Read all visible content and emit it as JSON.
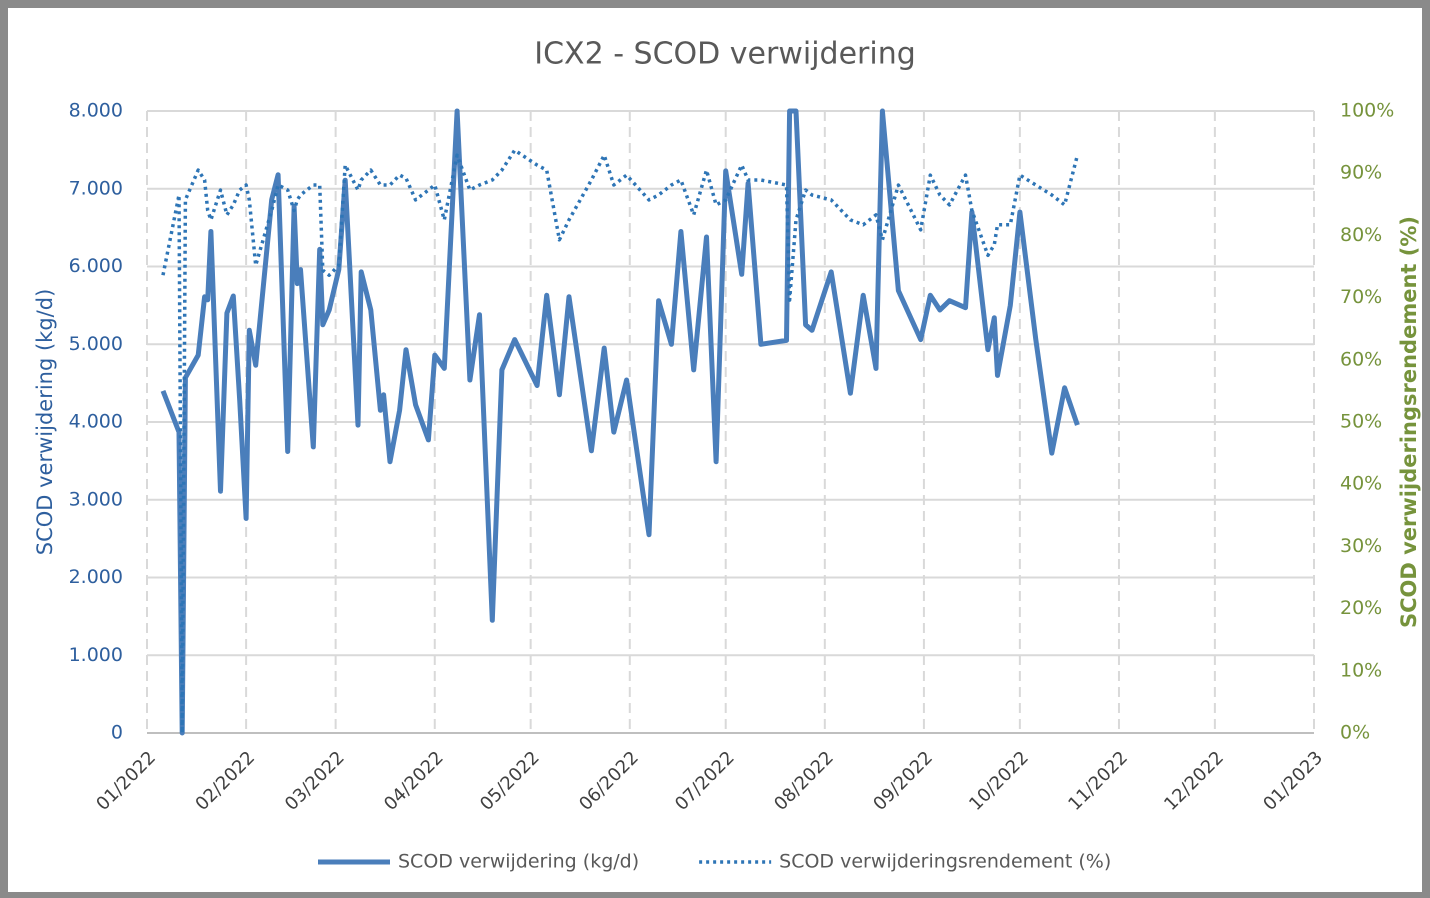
{
  "chart_data": {
    "type": "line",
    "title": "ICX2 - SCOD verwijdering",
    "y_label": "SCOD verwijdering (kg/d)",
    "y2_label": "SCOD verwijderingsrendement (%)",
    "xlim": [
      0,
      365
    ],
    "xticks": [
      {
        "value": 0,
        "label": "01/2022"
      },
      {
        "value": 31,
        "label": "02/2022"
      },
      {
        "value": 59,
        "label": "03/2022"
      },
      {
        "value": 90,
        "label": "04/2022"
      },
      {
        "value": 120,
        "label": "05/2022"
      },
      {
        "value": 151,
        "label": "06/2022"
      },
      {
        "value": 181,
        "label": "07/2022"
      },
      {
        "value": 212,
        "label": "08/2022"
      },
      {
        "value": 243,
        "label": "09/2022"
      },
      {
        "value": 273,
        "label": "10/2022"
      },
      {
        "value": 304,
        "label": "11/2022"
      },
      {
        "value": 334,
        "label": "12/2022"
      },
      {
        "value": 365,
        "label": "01/2023"
      }
    ],
    "ylim": [
      0,
      8000
    ],
    "yticks": [
      0,
      {
        "value": 1000,
        "label": "1.000"
      },
      {
        "value": 2000,
        "label": "2.000"
      },
      {
        "value": 3000,
        "label": "3.000"
      },
      {
        "value": 4000,
        "label": "4.000"
      },
      {
        "value": 5000,
        "label": "5.000"
      },
      {
        "value": 6000,
        "label": "6.000"
      },
      {
        "value": 7000,
        "label": "7.000"
      },
      {
        "value": 8000,
        "label": "8.000"
      }
    ],
    "y2lim": [
      0,
      100
    ],
    "y2ticks": [
      {
        "value": 0,
        "label": "0%"
      },
      {
        "value": 10,
        "label": "10%"
      },
      {
        "value": 20,
        "label": "20%"
      },
      {
        "value": 30,
        "label": "30%"
      },
      {
        "value": 40,
        "label": "40%"
      },
      {
        "value": 50,
        "label": "50%"
      },
      {
        "value": 60,
        "label": "60%"
      },
      {
        "value": 70,
        "label": "70%"
      },
      {
        "value": 80,
        "label": "80%"
      },
      {
        "value": 90,
        "label": "90%"
      },
      {
        "value": 100,
        "label": "100%"
      }
    ],
    "grid": true,
    "legend": "bottom",
    "x": [
      5,
      10,
      11,
      12,
      16,
      18,
      19,
      20,
      23,
      25,
      27,
      29,
      31,
      32,
      34,
      39,
      41,
      44,
      46,
      47,
      48,
      52,
      54,
      55,
      57,
      60,
      62,
      66,
      67,
      70,
      73,
      74,
      76,
      79,
      81,
      84,
      88,
      90,
      93,
      97,
      101,
      104,
      108,
      111,
      115,
      122,
      125,
      129,
      132,
      139,
      143,
      146,
      150,
      157,
      160,
      164,
      167,
      171,
      175,
      178,
      181,
      186,
      188,
      192,
      200,
      201,
      203,
      206,
      208,
      214,
      220,
      224,
      228,
      230,
      235,
      242,
      245,
      248,
      251,
      256,
      258,
      263,
      265,
      266,
      270,
      273,
      278,
      283,
      287,
      291
    ],
    "series": [
      {
        "name": "SCOD verwijdering (kg/d)",
        "color": "#4a7ebb",
        "line_style": "solid",
        "axis": "y",
        "values": [
          4400,
          3870,
          0,
          4570,
          4860,
          5610,
          5570,
          6450,
          3110,
          5400,
          5620,
          4280,
          2760,
          5180,
          4730,
          6860,
          7180,
          3620,
          6770,
          5780,
          5960,
          3680,
          6220,
          5250,
          5440,
          5960,
          7110,
          3960,
          5930,
          5440,
          4150,
          4350,
          3490,
          4150,
          4930,
          4220,
          3770,
          4860,
          4690,
          8000,
          4540,
          5380,
          1450,
          4670,
          5060,
          4470,
          5630,
          4350,
          5610,
          3630,
          4950,
          3870,
          4540,
          2550,
          5560,
          5000,
          6450,
          4670,
          6380,
          3490,
          7230,
          5900,
          7070,
          5000,
          5050,
          8000,
          8000,
          5250,
          5180,
          5930,
          4370,
          5630,
          4690,
          8000,
          5690,
          5060,
          5630,
          5440,
          5560,
          5470,
          6700,
          4930,
          5340,
          4600,
          5500,
          6700,
          5060,
          3600,
          4440,
          3960
        ]
      },
      {
        "name": "SCOD verwijderingsrendement (%)",
        "color": "#2e75b6",
        "line_style": "dotted",
        "axis": "y2",
        "values": [
          73.6,
          86.5,
          0,
          85.7,
          90.5,
          88.9,
          84,
          82.5,
          87.3,
          83.3,
          84.9,
          87.3,
          88.1,
          85.7,
          75.2,
          84,
          88.1,
          87.3,
          84,
          85.7,
          86.5,
          88.1,
          88.1,
          74.4,
          73.6,
          75.2,
          91.3,
          87.3,
          88.9,
          90.5,
          88.1,
          88.1,
          88.1,
          89.7,
          89.2,
          85.7,
          87.3,
          88.1,
          82.5,
          92.9,
          87.3,
          88.1,
          88.9,
          90.5,
          93.7,
          91.3,
          90.5,
          79.3,
          82.5,
          88.9,
          92.9,
          88.1,
          89.7,
          85.7,
          86.5,
          88.1,
          88.9,
          83.3,
          90.5,
          84.9,
          85.7,
          91.3,
          88.9,
          88.9,
          88.1,
          69.6,
          82.5,
          87.3,
          86.5,
          85.7,
          82.5,
          81.7,
          83.3,
          79.3,
          88.1,
          80.9,
          89.7,
          86.5,
          84.9,
          89.7,
          84,
          76.8,
          78.5,
          81.7,
          81.7,
          89.7,
          88.1,
          86.5,
          84.9,
          92.9
        ]
      }
    ],
    "y_axis_color": "#2e5f9e",
    "y2_axis_color": "#76933c"
  }
}
